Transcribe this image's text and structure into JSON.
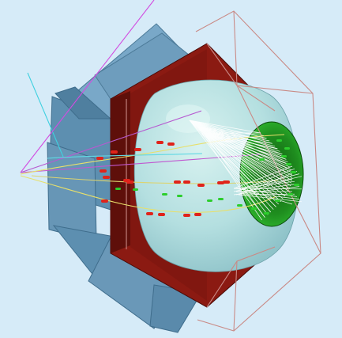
{
  "scene": {
    "kind": "3d-detector-event-display",
    "colors": {
      "background": "#d6ebf8",
      "panel_blue": "#5d8fb0",
      "panel_blue_light": "#79a8c8",
      "hexagon_red": "#8b1a12",
      "hexagon_red_dark": "#5e0f0a",
      "dome": "#b9e3e3",
      "dome_shade": "#9fcfd3",
      "green_cap": "#1e8f1e",
      "wireframe": "#c98a86",
      "photon_tracks": "#ffffff",
      "hit_red": "#e0231a",
      "hit_green": "#2ccd2c",
      "track_yellow": "#e8e06a",
      "track_magenta": "#d24be0",
      "track_cyan": "#3fd0e0"
    }
  }
}
